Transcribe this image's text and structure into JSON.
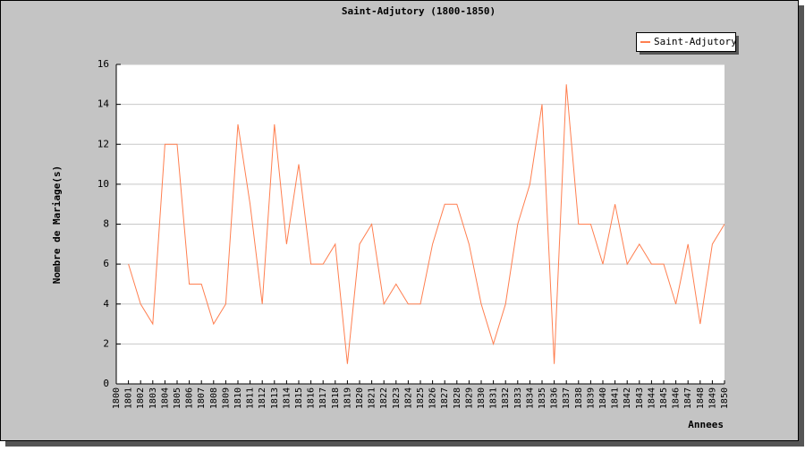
{
  "chart_data": {
    "type": "line",
    "title": "Saint-Adjutory (1800-1850)",
    "xlabel": "Annees",
    "ylabel": "Nombre de Mariage(s)",
    "categories": [
      "1800",
      "1801",
      "1802",
      "1803",
      "1804",
      "1805",
      "1806",
      "1807",
      "1808",
      "1809",
      "1810",
      "1811",
      "1812",
      "1813",
      "1814",
      "1815",
      "1816",
      "1817",
      "1818",
      "1819",
      "1820",
      "1821",
      "1822",
      "1823",
      "1824",
      "1825",
      "1826",
      "1827",
      "1828",
      "1829",
      "1830",
      "1831",
      "1832",
      "1833",
      "1834",
      "1835",
      "1836",
      "1837",
      "1838",
      "1839",
      "1840",
      "1841",
      "1842",
      "1843",
      "1844",
      "1845",
      "1846",
      "1847",
      "1848",
      "1849",
      "1850"
    ],
    "series": [
      {
        "name": "Saint-Adjutory",
        "color": "#ff7f50",
        "values": [
          null,
          6,
          4,
          3,
          12,
          12,
          5,
          5,
          3,
          4,
          13,
          9,
          4,
          13,
          7,
          11,
          6,
          6,
          7,
          1,
          7,
          8,
          4,
          5,
          4,
          4,
          7,
          9,
          9,
          7,
          4,
          2,
          4,
          8,
          10,
          14,
          1,
          15,
          8,
          8,
          6,
          9,
          6,
          7,
          6,
          6,
          4,
          7,
          3,
          7,
          8
        ]
      }
    ],
    "ylim": [
      0,
      16
    ],
    "yticks": [
      0,
      2,
      4,
      6,
      8,
      10,
      12,
      14,
      16
    ],
    "grid": true,
    "legend": "top-right"
  }
}
